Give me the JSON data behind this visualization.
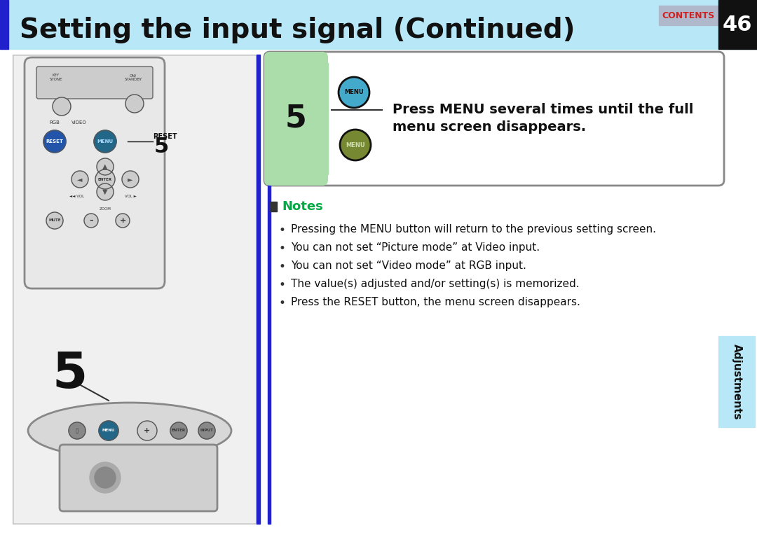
{
  "title": "Setting the input signal (Continued)",
  "title_bg": "#b8e8f8",
  "title_blue_bar": "#2020cc",
  "title_black_bar": "#111111",
  "contents_text": "CONTENTS",
  "contents_color": "#cc2222",
  "contents_bg": "#b0b8cc",
  "page_number": "46",
  "page_bg": "#111111",
  "page_fg": "#ffffff",
  "step_number": "5",
  "step_instruction": "Press MENU several times until the full\nmenu screen disappears.",
  "notes_title": "Notes",
  "notes_color": "#00aa44",
  "notes_bullets": [
    "Pressing the MENU button will return to the previous setting screen.",
    "You can not set “Picture mode” at Video input.",
    "You can not set “Video mode” at RGB input.",
    "The value(s) adjusted and/or setting(s) is memorized.",
    "Press the RESET button, the menu screen disappears."
  ],
  "adjustments_text": "Adjustments",
  "adjustments_bg": "#b8e8f8",
  "bg_white": "#ffffff"
}
